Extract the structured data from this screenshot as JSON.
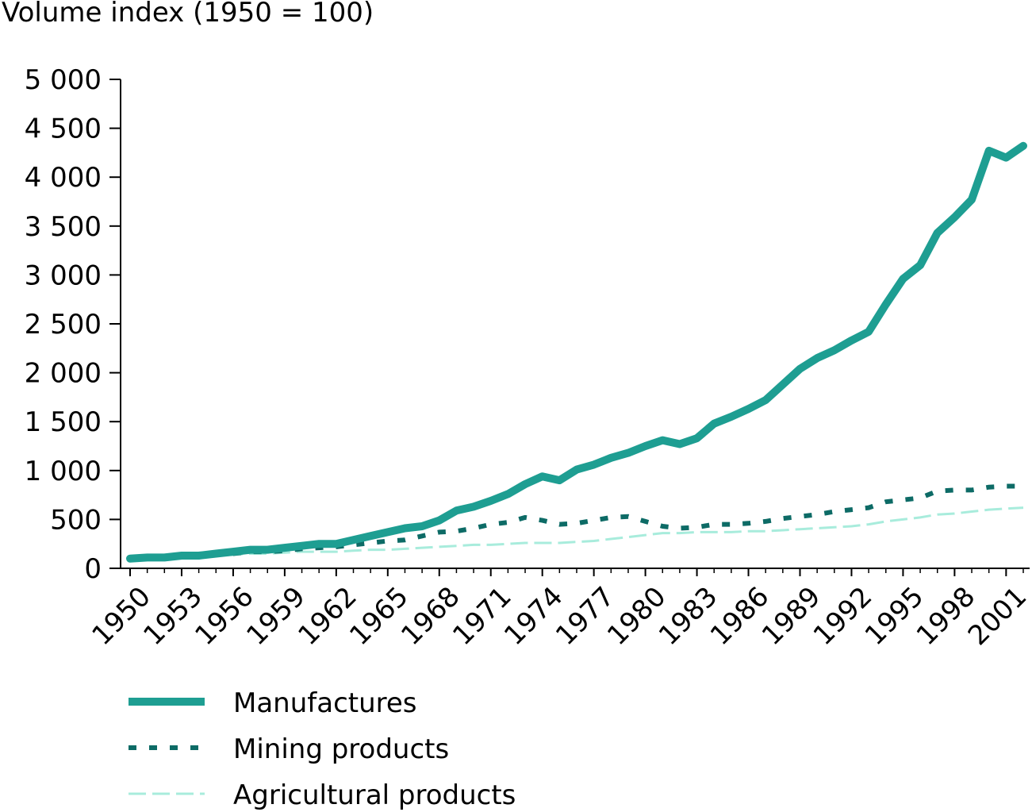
{
  "chart_data": {
    "type": "line",
    "title": "",
    "xlabel": "",
    "ylabel": "Volume index (1950 = 100)",
    "x": [
      1950,
      1951,
      1952,
      1953,
      1954,
      1955,
      1956,
      1957,
      1958,
      1959,
      1960,
      1961,
      1962,
      1963,
      1964,
      1965,
      1966,
      1967,
      1968,
      1969,
      1970,
      1971,
      1972,
      1973,
      1974,
      1975,
      1976,
      1977,
      1978,
      1979,
      1980,
      1981,
      1982,
      1983,
      1984,
      1985,
      1986,
      1987,
      1988,
      1989,
      1990,
      1991,
      1992,
      1993,
      1994,
      1995,
      1996,
      1997,
      1998,
      1999,
      2000,
      2001,
      2002
    ],
    "xtick_labels": [
      "1950",
      "1953",
      "1956",
      "1959",
      "1962",
      "1965",
      "1968",
      "1971",
      "1974",
      "1977",
      "1980",
      "1983",
      "1986",
      "1989",
      "1992",
      "1995",
      "1998",
      "2001"
    ],
    "ylim": [
      0,
      5000
    ],
    "ytick_values": [
      0,
      500,
      1000,
      1500,
      2000,
      2500,
      3000,
      3500,
      4000,
      4500,
      5000
    ],
    "ytick_labels": [
      "0",
      "500",
      "1 000",
      "1 500",
      "2 000",
      "2 500",
      "3 000",
      "3 500",
      "4 000",
      "4 500",
      "5 000"
    ],
    "grid": false,
    "legend_position": "bottom",
    "series": [
      {
        "name": "Manufactures",
        "color": "#1e9e92",
        "style": "solid-thick",
        "values": [
          100,
          110,
          110,
          130,
          130,
          150,
          170,
          190,
          190,
          210,
          230,
          250,
          250,
          290,
          330,
          370,
          410,
          430,
          490,
          590,
          630,
          690,
          760,
          860,
          940,
          900,
          1010,
          1060,
          1130,
          1180,
          1250,
          1310,
          1270,
          1330,
          1480,
          1550,
          1630,
          1720,
          1880,
          2040,
          2150,
          2230,
          2330,
          2420,
          2700,
          2960,
          3100,
          3430,
          3590,
          3770,
          4270,
          4200,
          4320
        ]
      },
      {
        "name": "Mining products",
        "color": "#0d6b66",
        "style": "dotted",
        "values": [
          100,
          100,
          110,
          120,
          130,
          140,
          150,
          170,
          170,
          180,
          200,
          210,
          220,
          240,
          260,
          280,
          290,
          330,
          370,
          380,
          410,
          450,
          470,
          520,
          490,
          450,
          460,
          490,
          520,
          530,
          480,
          430,
          410,
          420,
          450,
          450,
          460,
          480,
          510,
          530,
          550,
          580,
          600,
          620,
          680,
          700,
          720,
          790,
          800,
          800,
          830,
          840,
          840
        ]
      },
      {
        "name": "Agricultural products",
        "color": "#a8ecdc",
        "style": "dashed-thin",
        "values": [
          100,
          100,
          110,
          110,
          120,
          130,
          140,
          150,
          150,
          160,
          170,
          170,
          170,
          180,
          190,
          190,
          200,
          210,
          220,
          230,
          240,
          240,
          250,
          260,
          260,
          260,
          270,
          280,
          300,
          320,
          340,
          360,
          360,
          370,
          370,
          370,
          380,
          380,
          390,
          400,
          410,
          420,
          430,
          450,
          480,
          500,
          520,
          550,
          560,
          580,
          600,
          610,
          620
        ]
      }
    ]
  }
}
